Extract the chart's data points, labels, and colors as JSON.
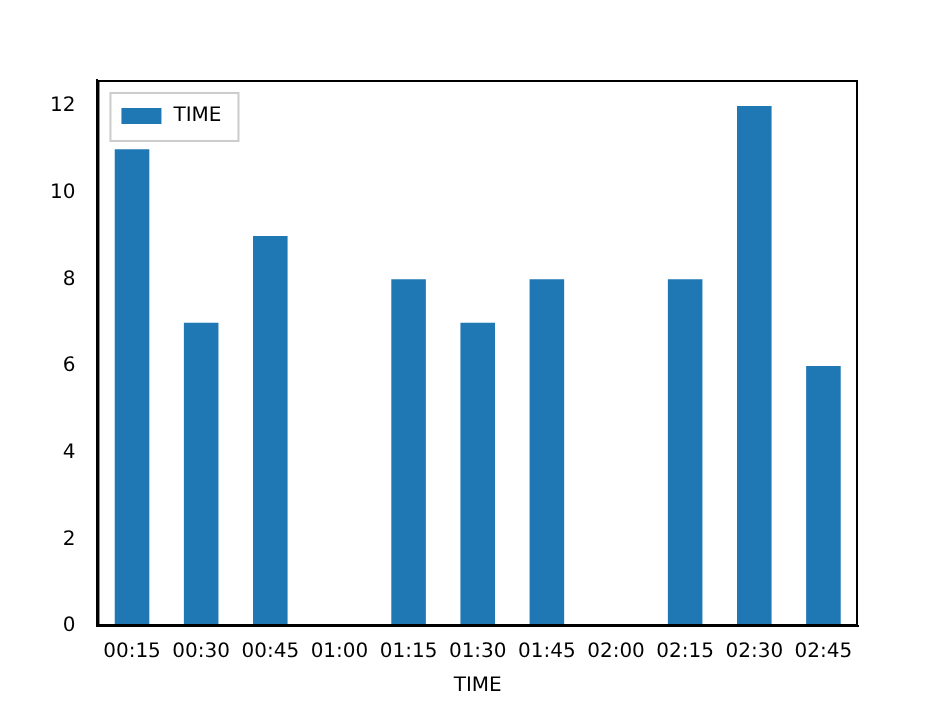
{
  "chart_data": {
    "type": "bar",
    "xlabel": "TIME",
    "categories": [
      "00:15",
      "00:30",
      "00:45",
      "01:00",
      "01:15",
      "01:30",
      "01:45",
      "02:00",
      "02:15",
      "02:30",
      "02:45"
    ],
    "series": [
      {
        "name": "TIME",
        "color": "#1f77b4",
        "values": [
          11,
          7,
          9,
          0,
          8,
          7,
          8,
          0,
          8,
          12,
          6
        ]
      }
    ],
    "ylim": [
      0,
      12.6
    ],
    "yticks": [
      0,
      2,
      4,
      6,
      8,
      10,
      12
    ],
    "grid": false,
    "legend": "top left"
  }
}
